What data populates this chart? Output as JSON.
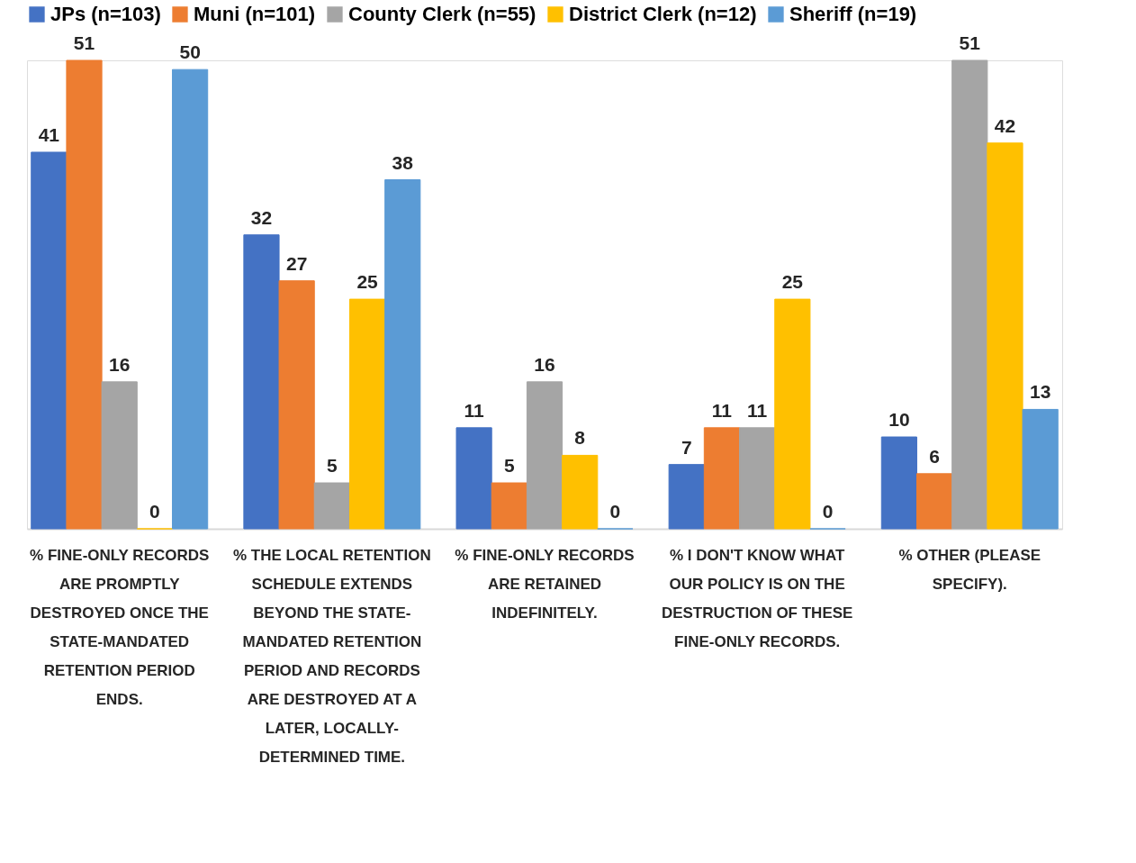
{
  "chart_data": {
    "type": "bar",
    "categories": [
      "% FINE-ONLY RECORDS ARE PROMPTLY DESTROYED ONCE THE STATE-MANDATED RETENTION PERIOD ENDS.",
      "% THE LOCAL RETENTION SCHEDULE EXTENDS BEYOND THE STATE-MANDATED RETENTION PERIOD AND RECORDS ARE DESTROYED AT A LATER, LOCALLY-DETERMINED TIME.",
      "% FINE-ONLY RECORDS ARE RETAINED INDEFINITELY.",
      "% I DON'T KNOW WHAT OUR POLICY IS ON THE DESTRUCTION OF THESE FINE-ONLY RECORDS.",
      "% OTHER (PLEASE SPECIFY)."
    ],
    "series": [
      {
        "name": "JPs (n=103)",
        "color": "#4472c4",
        "values": [
          41,
          32,
          11,
          7,
          10
        ]
      },
      {
        "name": "Muni (n=101)",
        "color": "#ed7d31",
        "values": [
          51,
          27,
          5,
          11,
          6
        ]
      },
      {
        "name": "County Clerk (n=55)",
        "color": "#a5a5a5",
        "values": [
          16,
          5,
          16,
          11,
          51
        ]
      },
      {
        "name": "District Clerk (n=12)",
        "color": "#ffc000",
        "values": [
          0,
          25,
          8,
          25,
          42
        ]
      },
      {
        "name": "Sheriff (n=19)",
        "color": "#5b9bd5",
        "values": [
          50,
          38,
          0,
          0,
          13
        ]
      }
    ],
    "data_labels": true,
    "legend": "top",
    "grid": false
  }
}
